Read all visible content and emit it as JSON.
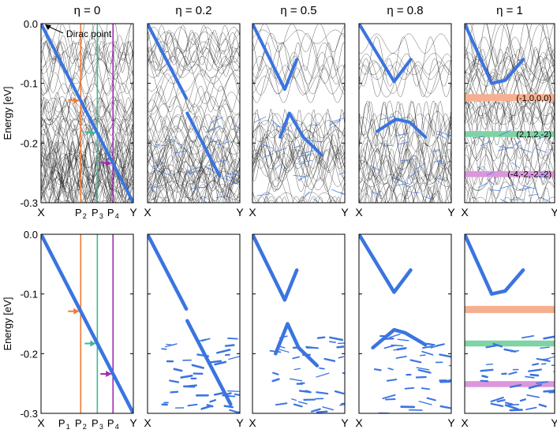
{
  "figure": {
    "ylabel": "Energy [eV]",
    "y_ticks": [
      "0.0",
      "-0.1",
      "-0.2",
      "-0.3"
    ]
  },
  "colors": {
    "band": "#3a74e0",
    "thin": "#1a1a1a",
    "p2": "#f07a35",
    "p3": "#3cb896",
    "p4": "#9d2bb0",
    "frame": "#000000",
    "orange_gap": "#f6b08f",
    "green_gap": "#7fd3a4",
    "pink_gap": "#dc96dc"
  },
  "chart_data": [
    {
      "type": "line",
      "title": "η = 0",
      "xlabel_left": "X",
      "xlabel_right": "Y",
      "ylim": [
        -0.3,
        0.0
      ],
      "background_bands": "dense",
      "vlines": [
        "P2",
        "P3",
        "P4"
      ],
      "vline_labels": [
        "P",
        "2",
        "P",
        "3",
        "P",
        "4"
      ],
      "annotation": "Dirac point",
      "series": [
        {
          "x": [
            0.0,
            1.0
          ],
          "y": [
            0.0,
            -0.3
          ]
        }
      ]
    },
    {
      "type": "line",
      "title": "η = 0.2",
      "xlabel_left": "X",
      "xlabel_right": "Y",
      "ylim": [
        -0.3,
        0.0
      ],
      "background_bands": "dense",
      "gaps": [
        [
          -0.135,
          -0.15
        ]
      ],
      "series": [
        {
          "x": [
            0.0,
            0.42
          ],
          "y": [
            0.0,
            -0.125
          ]
        },
        {
          "x": [
            0.43,
            0.78
          ],
          "y": [
            -0.15,
            -0.255
          ]
        }
      ]
    },
    {
      "type": "line",
      "title": "η = 0.5",
      "xlabel_left": "X",
      "xlabel_right": "Y",
      "ylim": [
        -0.3,
        0.0
      ],
      "background_bands": "gapped",
      "gaps": [
        [
          -0.11,
          -0.15
        ]
      ],
      "series": [
        {
          "x": [
            0.0,
            0.35,
            0.48
          ],
          "y": [
            0.0,
            -0.11,
            -0.06
          ]
        },
        {
          "x": [
            0.3,
            0.4,
            0.55,
            0.75
          ],
          "y": [
            -0.19,
            -0.15,
            -0.19,
            -0.22
          ]
        }
      ]
    },
    {
      "type": "line",
      "title": "η = 0.8",
      "xlabel_left": "X",
      "xlabel_right": "Y",
      "ylim": [
        -0.3,
        0.0
      ],
      "background_bands": "gapped",
      "gaps": [
        [
          -0.1,
          -0.15
        ]
      ],
      "series": [
        {
          "x": [
            0.0,
            0.38,
            0.56
          ],
          "y": [
            0.0,
            -0.097,
            -0.06
          ]
        },
        {
          "x": [
            0.2,
            0.4,
            0.55,
            0.72
          ],
          "y": [
            -0.18,
            -0.16,
            -0.165,
            -0.19
          ]
        }
      ]
    },
    {
      "type": "line",
      "title": "η = 1",
      "xlabel_left": "X",
      "xlabel_right": "Y",
      "ylim": [
        -0.3,
        0.0
      ],
      "background_bands": "gapped",
      "highlight_gaps": [
        {
          "label": "(-1,0,0,0)",
          "range": [
            -0.118,
            -0.13
          ],
          "color": "orange"
        },
        {
          "label": "(2,1,2,-2)",
          "range": [
            -0.18,
            -0.19
          ],
          "color": "green"
        },
        {
          "label": "(-4,-2,-2,-2)",
          "range": [
            -0.247,
            -0.257
          ],
          "color": "pink"
        }
      ],
      "series": [
        {
          "x": [
            0.0,
            0.3,
            0.45,
            0.65
          ],
          "y": [
            0.0,
            -0.1,
            -0.095,
            -0.06
          ]
        }
      ]
    },
    {
      "type": "line",
      "title": "",
      "xlabel_left": "X",
      "xlabel_right": "Y",
      "ylim": [
        -0.3,
        0.0
      ],
      "vlines": [
        "P1",
        "P2",
        "P3",
        "P4"
      ],
      "vline_labels": [
        "P",
        "1",
        "P",
        "2",
        "P",
        "3",
        "P",
        "4"
      ],
      "series": [
        {
          "x": [
            0.0,
            1.0
          ],
          "y": [
            0.0,
            -0.3
          ]
        }
      ]
    },
    {
      "type": "line",
      "title": "",
      "xlabel_left": "X",
      "xlabel_right": "Y",
      "ylim": [
        -0.3,
        0.0
      ],
      "series": [
        {
          "x": [
            0.0,
            0.42
          ],
          "y": [
            0.0,
            -0.125
          ]
        },
        {
          "x": [
            0.43,
            0.9
          ],
          "y": [
            -0.145,
            -0.285
          ]
        }
      ]
    },
    {
      "type": "line",
      "title": "",
      "xlabel_left": "X",
      "xlabel_right": "Y",
      "ylim": [
        -0.3,
        0.0
      ],
      "series": [
        {
          "x": [
            0.0,
            0.35,
            0.48
          ],
          "y": [
            0.0,
            -0.11,
            -0.06
          ]
        },
        {
          "x": [
            0.25,
            0.38,
            0.5,
            0.7
          ],
          "y": [
            -0.2,
            -0.15,
            -0.19,
            -0.22
          ]
        }
      ]
    },
    {
      "type": "line",
      "title": "",
      "xlabel_left": "X",
      "xlabel_right": "Y",
      "ylim": [
        -0.3,
        0.0
      ],
      "series": [
        {
          "x": [
            0.0,
            0.38,
            0.56
          ],
          "y": [
            0.0,
            -0.097,
            -0.06
          ]
        },
        {
          "x": [
            0.15,
            0.38,
            0.5,
            0.72
          ],
          "y": [
            -0.19,
            -0.16,
            -0.165,
            -0.185
          ]
        }
      ]
    },
    {
      "type": "line",
      "title": "",
      "xlabel_left": "X",
      "xlabel_right": "Y",
      "ylim": [
        -0.3,
        0.0
      ],
      "highlight_gaps": [
        {
          "range": [
            -0.12,
            -0.132
          ],
          "color": "orange"
        },
        {
          "range": [
            -0.178,
            -0.188
          ],
          "color": "green"
        },
        {
          "range": [
            -0.246,
            -0.256
          ],
          "color": "pink"
        }
      ],
      "series": [
        {
          "x": [
            0.0,
            0.3,
            0.45,
            0.65
          ],
          "y": [
            0.0,
            -0.1,
            -0.095,
            -0.06
          ]
        }
      ]
    }
  ]
}
